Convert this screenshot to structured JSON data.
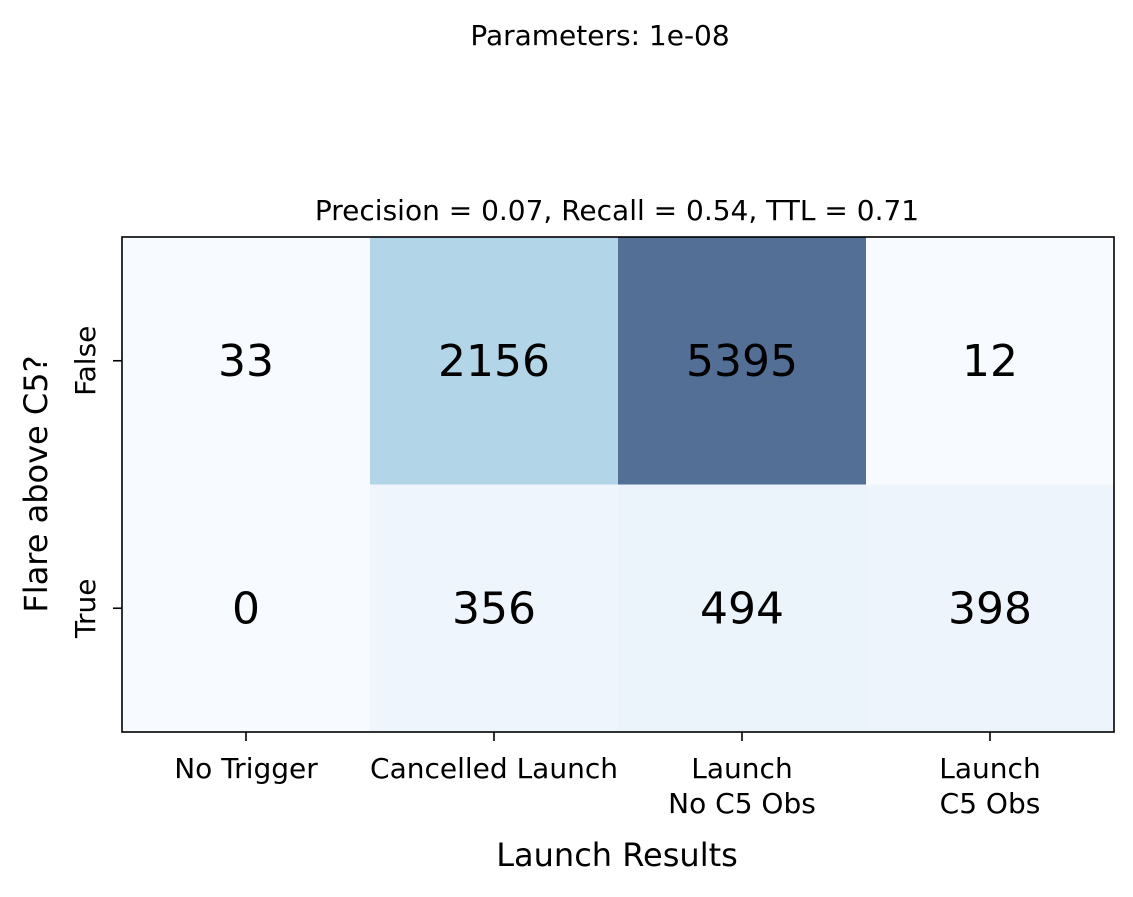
{
  "chart_data": {
    "type": "heatmap",
    "suptitle": "Parameters: 1e-08",
    "title": "Precision = 0.07, Recall = 0.54, TTL = 0.71",
    "xlabel": "Launch Results",
    "ylabel": "Flare above C5?",
    "columns": [
      [
        "No Trigger"
      ],
      [
        "Cancelled Launch"
      ],
      [
        "Launch",
        "No C5 Obs"
      ],
      [
        "Launch",
        " C5 Obs"
      ]
    ],
    "rows": [
      "False",
      "True"
    ],
    "values": [
      [
        33,
        2156,
        5395,
        12
      ],
      [
        0,
        356,
        494,
        398
      ]
    ],
    "colormap": "Blues",
    "cell_colors": [
      [
        "#f7fbff",
        "#b3d5e8",
        "#536f96",
        "#f7fbff"
      ],
      [
        "#f7fbff",
        "#eff5fc",
        "#ebf3fb",
        "#edf4fb"
      ]
    ],
    "grid": false
  }
}
